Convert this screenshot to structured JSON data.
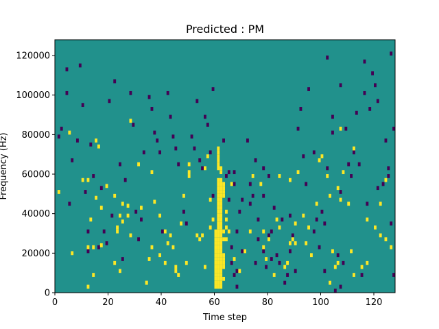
{
  "chart_data": {
    "type": "heatmap",
    "title": "Predicted : PM",
    "xlabel": "Time step",
    "ylabel": "Frequency (Hz)",
    "xlim": [
      0,
      128
    ],
    "ylim": [
      0,
      128000
    ],
    "x_ticks": [
      0,
      20,
      40,
      60,
      80,
      100,
      120
    ],
    "y_ticks": [
      0,
      20000,
      40000,
      60000,
      80000,
      100000,
      120000
    ],
    "x_tick_labels": [
      "0",
      "20",
      "40",
      "60",
      "80",
      "100",
      "120"
    ],
    "y_tick_labels": [
      "0",
      "20000",
      "40000",
      "60000",
      "80000",
      "100000",
      "120000"
    ],
    "grid": false,
    "colormap": "viridis",
    "colors": {
      "low": "#440154",
      "mid": "#21918c",
      "high": "#fde725",
      "frame": "#000000"
    },
    "bin_height_hz": 2000,
    "background_value": 0,
    "high_cells_note": "values 1 = high (yellow), -1 = low (purple), 0 = background (teal)",
    "high_cells": [
      [
        1,
        50
      ],
      [
        5,
        80
      ],
      [
        6,
        19
      ],
      [
        10,
        56
      ],
      [
        12,
        56
      ],
      [
        13,
        36
      ],
      [
        12,
        2
      ],
      [
        12,
        22
      ],
      [
        14,
        8
      ],
      [
        14,
        22
      ],
      [
        15,
        47
      ],
      [
        15,
        76
      ],
      [
        16,
        73
      ],
      [
        17,
        42
      ],
      [
        17,
        23
      ],
      [
        19,
        53
      ],
      [
        22,
        14
      ],
      [
        22,
        48
      ],
      [
        23,
        32
      ],
      [
        23,
        30
      ],
      [
        24,
        10
      ],
      [
        24,
        38
      ],
      [
        25,
        35
      ],
      [
        25,
        44
      ],
      [
        27,
        38
      ],
      [
        27,
        43
      ],
      [
        28,
        86
      ],
      [
        28,
        28
      ],
      [
        31,
        64
      ],
      [
        32,
        42
      ],
      [
        34,
        4
      ],
      [
        34,
        4
      ],
      [
        35,
        16
      ],
      [
        36,
        22
      ],
      [
        36,
        60
      ],
      [
        37,
        45
      ],
      [
        39,
        18
      ],
      [
        39,
        38
      ],
      [
        41,
        30
      ],
      [
        41,
        14
      ],
      [
        42,
        24
      ],
      [
        43,
        28
      ],
      [
        44,
        22
      ],
      [
        45,
        10
      ],
      [
        45,
        12
      ],
      [
        46,
        8
      ],
      [
        47,
        34
      ],
      [
        48,
        48
      ],
      [
        49,
        14
      ],
      [
        50,
        58
      ],
      [
        50,
        64
      ],
      [
        50,
        60
      ],
      [
        53,
        28
      ],
      [
        54,
        26
      ],
      [
        55,
        28
      ],
      [
        56,
        12
      ],
      [
        56,
        62
      ],
      [
        57,
        68
      ],
      [
        58,
        46
      ],
      [
        58,
        32
      ],
      [
        59,
        36
      ],
      [
        60,
        30
      ],
      [
        60,
        28
      ],
      [
        60,
        26
      ],
      [
        60,
        24
      ],
      [
        60,
        22
      ],
      [
        60,
        20
      ],
      [
        60,
        18
      ],
      [
        60,
        16
      ],
      [
        60,
        14
      ],
      [
        60,
        12
      ],
      [
        60,
        10
      ],
      [
        60,
        8
      ],
      [
        60,
        6
      ],
      [
        60,
        4
      ],
      [
        60,
        2
      ],
      [
        61,
        56
      ],
      [
        61,
        54
      ],
      [
        61,
        52
      ],
      [
        61,
        50
      ],
      [
        61,
        48
      ],
      [
        61,
        46
      ],
      [
        61,
        44
      ],
      [
        61,
        42
      ],
      [
        61,
        40
      ],
      [
        61,
        38
      ],
      [
        61,
        36
      ],
      [
        61,
        34
      ],
      [
        61,
        32
      ],
      [
        61,
        30
      ],
      [
        61,
        28
      ],
      [
        61,
        26
      ],
      [
        61,
        24
      ],
      [
        61,
        22
      ],
      [
        61,
        20
      ],
      [
        61,
        18
      ],
      [
        61,
        16
      ],
      [
        61,
        14
      ],
      [
        61,
        12
      ],
      [
        61,
        10
      ],
      [
        61,
        8
      ],
      [
        61,
        6
      ],
      [
        61,
        4
      ],
      [
        61,
        2
      ],
      [
        61,
        62
      ],
      [
        61,
        64
      ],
      [
        61,
        66
      ],
      [
        61,
        68
      ],
      [
        61,
        70
      ],
      [
        61,
        72
      ],
      [
        62,
        56
      ],
      [
        62,
        54
      ],
      [
        62,
        52
      ],
      [
        62,
        50
      ],
      [
        62,
        48
      ],
      [
        62,
        46
      ],
      [
        62,
        44
      ],
      [
        62,
        42
      ],
      [
        62,
        40
      ],
      [
        62,
        38
      ],
      [
        62,
        36
      ],
      [
        62,
        34
      ],
      [
        62,
        32
      ],
      [
        62,
        30
      ],
      [
        62,
        28
      ],
      [
        62,
        26
      ],
      [
        62,
        24
      ],
      [
        62,
        22
      ],
      [
        62,
        20
      ],
      [
        62,
        18
      ],
      [
        62,
        16
      ],
      [
        62,
        14
      ],
      [
        62,
        12
      ],
      [
        62,
        10
      ],
      [
        62,
        8
      ],
      [
        62,
        6
      ],
      [
        62,
        4
      ],
      [
        62,
        2
      ],
      [
        62,
        60
      ],
      [
        62,
        62
      ],
      [
        63,
        48
      ],
      [
        63,
        50
      ],
      [
        63,
        52
      ],
      [
        63,
        54
      ],
      [
        63,
        30
      ],
      [
        63,
        26
      ],
      [
        63,
        12
      ],
      [
        63,
        14
      ],
      [
        63,
        16
      ],
      [
        63,
        18
      ],
      [
        63,
        6
      ],
      [
        64,
        36
      ],
      [
        64,
        40
      ],
      [
        64,
        32
      ],
      [
        64,
        26
      ],
      [
        65,
        30
      ],
      [
        66,
        54
      ],
      [
        67,
        16
      ],
      [
        69,
        10
      ],
      [
        71,
        20
      ],
      [
        73,
        30
      ],
      [
        74,
        58
      ],
      [
        77,
        54
      ],
      [
        78,
        22
      ],
      [
        78,
        30
      ],
      [
        79,
        16
      ],
      [
        80,
        26
      ],
      [
        82,
        8
      ],
      [
        83,
        36
      ],
      [
        84,
        58
      ],
      [
        84,
        32
      ],
      [
        86,
        12
      ],
      [
        87,
        14
      ],
      [
        88,
        56
      ],
      [
        88,
        24
      ],
      [
        89,
        26
      ],
      [
        90,
        24
      ],
      [
        90,
        34
      ],
      [
        91,
        60
      ],
      [
        93,
        38
      ],
      [
        94,
        24
      ],
      [
        95,
        32
      ],
      [
        96,
        18
      ],
      [
        98,
        44
      ],
      [
        99,
        66
      ],
      [
        100,
        68
      ],
      [
        102,
        58
      ],
      [
        103,
        4
      ],
      [
        103,
        48
      ],
      [
        104,
        20
      ],
      [
        105,
        12
      ],
      [
        106,
        14
      ],
      [
        106,
        52
      ],
      [
        107,
        46
      ],
      [
        107,
        82
      ],
      [
        108,
        60
      ],
      [
        110,
        44
      ],
      [
        111,
        20
      ],
      [
        112,
        8
      ],
      [
        112,
        72
      ],
      [
        115,
        12
      ],
      [
        117,
        14
      ],
      [
        117,
        36
      ],
      [
        120,
        32
      ],
      [
        122,
        44
      ],
      [
        122,
        28
      ],
      [
        124,
        56
      ],
      [
        124,
        26
      ],
      [
        126,
        22
      ]
    ],
    "low_cells": [
      [
        1,
        78
      ],
      [
        2,
        82
      ],
      [
        4,
        112
      ],
      [
        4,
        100
      ],
      [
        5,
        44
      ],
      [
        6,
        66
      ],
      [
        8,
        76
      ],
      [
        9,
        114
      ],
      [
        10,
        94
      ],
      [
        11,
        50
      ],
      [
        12,
        30
      ],
      [
        12,
        20
      ],
      [
        13,
        74
      ],
      [
        14,
        58
      ],
      [
        16,
        22
      ],
      [
        17,
        52
      ],
      [
        18,
        30
      ],
      [
        19,
        24
      ],
      [
        20,
        96
      ],
      [
        21,
        38
      ],
      [
        22,
        106
      ],
      [
        24,
        64
      ],
      [
        25,
        16
      ],
      [
        26,
        56
      ],
      [
        28,
        100
      ],
      [
        29,
        84
      ],
      [
        30,
        40
      ],
      [
        31,
        26
      ],
      [
        32,
        36
      ],
      [
        33,
        70
      ],
      [
        35,
        98
      ],
      [
        36,
        92
      ],
      [
        37,
        80
      ],
      [
        38,
        76
      ],
      [
        39,
        70
      ],
      [
        40,
        30
      ],
      [
        42,
        100
      ],
      [
        43,
        88
      ],
      [
        44,
        78
      ],
      [
        45,
        72
      ],
      [
        46,
        64
      ],
      [
        48,
        40
      ],
      [
        49,
        34
      ],
      [
        51,
        78
      ],
      [
        52,
        72
      ],
      [
        53,
        96
      ],
      [
        54,
        66
      ],
      [
        55,
        62
      ],
      [
        56,
        88
      ],
      [
        57,
        84
      ],
      [
        58,
        70
      ],
      [
        59,
        48
      ],
      [
        59,
        102
      ],
      [
        63,
        76
      ],
      [
        64,
        58
      ],
      [
        65,
        60
      ],
      [
        65,
        46
      ],
      [
        66,
        14
      ],
      [
        66,
        22
      ],
      [
        67,
        60
      ],
      [
        67,
        54
      ],
      [
        67,
        8
      ],
      [
        68,
        30
      ],
      [
        68,
        10
      ],
      [
        68,
        2
      ],
      [
        69,
        40
      ],
      [
        70,
        20
      ],
      [
        70,
        46
      ],
      [
        72,
        76
      ],
      [
        73,
        54
      ],
      [
        73,
        44
      ],
      [
        74,
        48
      ],
      [
        75,
        14
      ],
      [
        75,
        66
      ],
      [
        76,
        26
      ],
      [
        76,
        36
      ],
      [
        78,
        62
      ],
      [
        78,
        48
      ],
      [
        78,
        20
      ],
      [
        79,
        12
      ],
      [
        80,
        28
      ],
      [
        80,
        58
      ],
      [
        81,
        30
      ],
      [
        81,
        16
      ],
      [
        82,
        42
      ],
      [
        83,
        18
      ],
      [
        84,
        14
      ],
      [
        85,
        36
      ],
      [
        86,
        4
      ],
      [
        87,
        8
      ],
      [
        88,
        20
      ],
      [
        88,
        38
      ],
      [
        89,
        28
      ],
      [
        90,
        10
      ],
      [
        91,
        82
      ],
      [
        92,
        92
      ],
      [
        93,
        68
      ],
      [
        94,
        54
      ],
      [
        95,
        102
      ],
      [
        97,
        70
      ],
      [
        97,
        30
      ],
      [
        98,
        36
      ],
      [
        99,
        22
      ],
      [
        100,
        40
      ],
      [
        101,
        10
      ],
      [
        101,
        34
      ],
      [
        102,
        62
      ],
      [
        102,
        118
      ],
      [
        104,
        88
      ],
      [
        104,
        80
      ],
      [
        105,
        0
      ],
      [
        106,
        18
      ],
      [
        107,
        50
      ],
      [
        107,
        2
      ],
      [
        107,
        104
      ],
      [
        108,
        14
      ],
      [
        109,
        82
      ],
      [
        110,
        64
      ],
      [
        111,
        58
      ],
      [
        112,
        70
      ],
      [
        113,
        90
      ],
      [
        114,
        64
      ],
      [
        115,
        8
      ],
      [
        116,
        116
      ],
      [
        116,
        100
      ],
      [
        117,
        44
      ],
      [
        118,
        92
      ],
      [
        119,
        110
      ],
      [
        121,
        52
      ],
      [
        121,
        96
      ],
      [
        123,
        54
      ],
      [
        124,
        76
      ],
      [
        125,
        62
      ],
      [
        126,
        120
      ],
      [
        127,
        8
      ],
      [
        127,
        82
      ],
      [
        126,
        34
      ],
      [
        125,
        58
      ],
      [
        120,
        104
      ]
    ]
  }
}
